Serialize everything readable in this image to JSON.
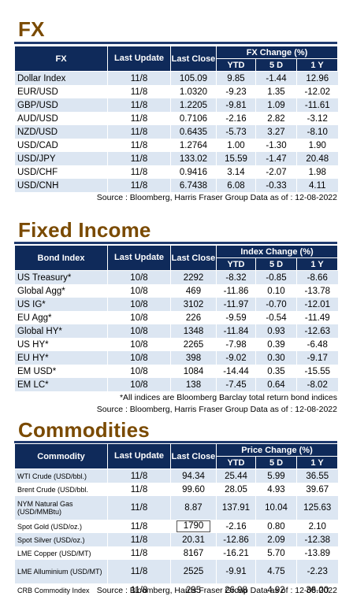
{
  "fx": {
    "title": "FX",
    "headers": {
      "name": "FX",
      "last_update": "Last Update",
      "last_close": "Last Close",
      "group": "FX Change (%)",
      "ytd": "YTD",
      "d5": "5 D",
      "y1": "1 Y"
    },
    "rows": [
      {
        "name": "Dollar Index",
        "update": "11/8",
        "close": "105.09",
        "ytd": "9.85",
        "d5": "-1.44",
        "y1": "12.96"
      },
      {
        "name": "EUR/USD",
        "update": "11/8",
        "close": "1.0320",
        "ytd": "-9.23",
        "d5": "1.35",
        "y1": "-12.02"
      },
      {
        "name": "GBP/USD",
        "update": "11/8",
        "close": "1.2205",
        "ytd": "-9.81",
        "d5": "1.09",
        "y1": "-11.61"
      },
      {
        "name": "AUD/USD",
        "update": "11/8",
        "close": "0.7106",
        "ytd": "-2.16",
        "d5": "2.82",
        "y1": "-3.12"
      },
      {
        "name": "NZD/USD",
        "update": "11/8",
        "close": "0.6435",
        "ytd": "-5.73",
        "d5": "3.27",
        "y1": "-8.10"
      },
      {
        "name": "USD/CAD",
        "update": "11/8",
        "close": "1.2764",
        "ytd": "1.00",
        "d5": "-1.30",
        "y1": "1.90"
      },
      {
        "name": "USD/JPY",
        "update": "11/8",
        "close": "133.02",
        "ytd": "15.59",
        "d5": "-1.47",
        "y1": "20.48"
      },
      {
        "name": "USD/CHF",
        "update": "11/8",
        "close": "0.9416",
        "ytd": "3.14",
        "d5": "-2.07",
        "y1": "1.98"
      },
      {
        "name": "USD/CNH",
        "update": "11/8",
        "close": "6.7438",
        "ytd": "6.08",
        "d5": "-0.33",
        "y1": "4.11"
      }
    ],
    "source": "Source : Bloomberg, Harris Fraser Group Data as of : 12-08-2022"
  },
  "fixed_income": {
    "title": "Fixed Income",
    "headers": {
      "name": "Bond Index",
      "last_update": "Last Update",
      "last_close": "Last Close",
      "group": "Index Change (%)",
      "ytd": "YTD",
      "d5": "5 D",
      "y1": "1 Y"
    },
    "rows": [
      {
        "name": "US Treasury*",
        "update": "10/8",
        "close": "2292",
        "ytd": "-8.32",
        "d5": "-0.85",
        "y1": "-8.66"
      },
      {
        "name": "Global Agg*",
        "update": "10/8",
        "close": "469",
        "ytd": "-11.86",
        "d5": "0.10",
        "y1": "-13.78"
      },
      {
        "name": "US IG*",
        "update": "10/8",
        "close": "3102",
        "ytd": "-11.97",
        "d5": "-0.70",
        "y1": "-12.01"
      },
      {
        "name": "EU Agg*",
        "update": "10/8",
        "close": "226",
        "ytd": "-9.59",
        "d5": "-0.54",
        "y1": "-11.49"
      },
      {
        "name": "Global HY*",
        "update": "10/8",
        "close": "1348",
        "ytd": "-11.84",
        "d5": "0.93",
        "y1": "-12.63"
      },
      {
        "name": "US HY*",
        "update": "10/8",
        "close": "2265",
        "ytd": "-7.98",
        "d5": "0.39",
        "y1": "-6.48"
      },
      {
        "name": "EU HY*",
        "update": "10/8",
        "close": "398",
        "ytd": "-9.02",
        "d5": "0.30",
        "y1": "-9.17"
      },
      {
        "name": "EM USD*",
        "update": "10/8",
        "close": "1084",
        "ytd": "-14.44",
        "d5": "0.35",
        "y1": "-15.55"
      },
      {
        "name": "EM LC*",
        "update": "10/8",
        "close": "138",
        "ytd": "-7.45",
        "d5": "0.64",
        "y1": "-8.02"
      }
    ],
    "note": "*All indices are Bloomberg Barclay total return bond indices",
    "source": "Source : Bloomberg, Harris Fraser Group Data as of : 12-08-2022"
  },
  "commodities": {
    "title": "Commodities",
    "headers": {
      "name": "Commodity",
      "last_update": "Last Update",
      "last_close": "Last Close",
      "group": "Price Change (%)",
      "ytd": "YTD",
      "d5": "5 D",
      "y1": "1 Y"
    },
    "rows": [
      {
        "name": "WTI Crude (USD/bbl.)",
        "update": "11/8",
        "close": "94.34",
        "ytd": "25.44",
        "d5": "5.99",
        "y1": "36.55"
      },
      {
        "name": "Brent Crude (USD/bbl.",
        "update": "11/8",
        "close": "99.60",
        "ytd": "28.05",
        "d5": "4.93",
        "y1": "39.67"
      },
      {
        "name": "NYM Natural Gas (USD/MMBtu)",
        "update": "11/8",
        "close": "8.87",
        "ytd": "137.91",
        "d5": "10.04",
        "y1": "125.63"
      },
      {
        "name": "Spot Gold (USD/oz.)",
        "update": "11/8",
        "close": "1790",
        "ytd": "-2.16",
        "d5": "0.80",
        "y1": "2.10"
      },
      {
        "name": "Spot Silver (USD/oz.)",
        "update": "11/8",
        "close": "20.31",
        "ytd": "-12.86",
        "d5": "2.09",
        "y1": "-12.38"
      },
      {
        "name": "LME Copper (USD/MT)",
        "update": "11/8",
        "close": "8167",
        "ytd": "-16.21",
        "d5": "5.70",
        "y1": "-13.89"
      },
      {
        "name": "LME Alluminium (USD/MT)",
        "update": "11/8",
        "close": "2525",
        "ytd": "-9.91",
        "d5": "4.75",
        "y1": "-2.23"
      },
      {
        "name": "CRB Commodity Index",
        "update": "11/8",
        "close": "295",
        "ytd": "26.98",
        "d5": "4.92",
        "y1": "36.00"
      }
    ],
    "source": "Source : Bloomberg, Harris Fraser Group Data as of : 12-08-2022"
  }
}
